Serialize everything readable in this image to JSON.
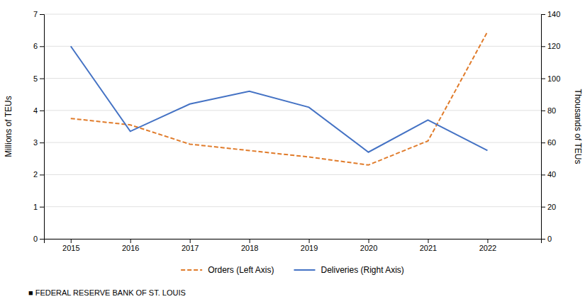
{
  "chart_data": {
    "type": "line",
    "x": [
      2015,
      2016,
      2017,
      2018,
      2019,
      2020,
      2021,
      2022
    ],
    "xlim": [
      2014.55,
      2022.9
    ],
    "xticks": [
      2015,
      2016,
      2017,
      2018,
      2019,
      2020,
      2021,
      2022
    ],
    "ylim": [
      0,
      7
    ],
    "yticks": [
      0,
      1,
      2,
      3,
      4,
      5,
      6,
      7
    ],
    "y2lim": [
      0,
      140
    ],
    "y2ticks": [
      0,
      20,
      40,
      60,
      80,
      100,
      120,
      140
    ],
    "ylabel": "Millions of TEUs",
    "y2label": "Thousands of TEUs",
    "grid": true,
    "legend": "bottom",
    "series": [
      {
        "name": "Orders (Left Axis)",
        "color": "#E07B2A",
        "line_style": "dashed",
        "values": [
          3.75,
          3.55,
          2.95,
          2.75,
          2.55,
          2.3,
          3.05,
          6.45
        ]
      },
      {
        "name": "Deliveries (Right Axis)",
        "color": "#4472C4",
        "line_style": "solid",
        "axis": "y2",
        "values": [
          120,
          67,
          84,
          92,
          82,
          54,
          74,
          55
        ]
      }
    ],
    "annotations": [
      "■  FEDERAL RESERVE BANK OF ST. LOUIS"
    ]
  }
}
